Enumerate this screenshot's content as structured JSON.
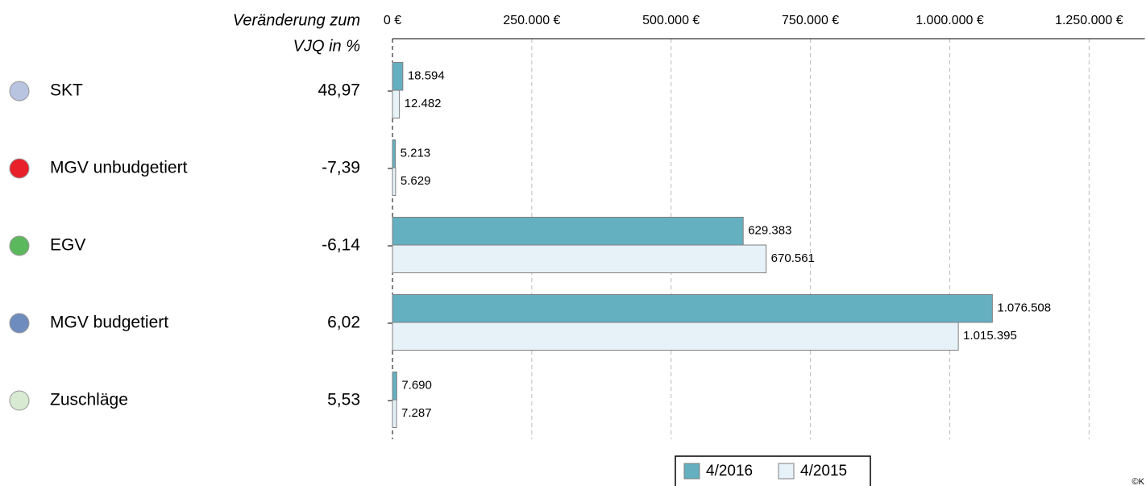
{
  "chart_data": {
    "type": "bar",
    "orientation": "horizontal",
    "change_header": [
      "Veränderung zum",
      "VJQ in %"
    ],
    "categories": [
      "SKT",
      "MGV unbudgetiert",
      "EGV",
      "MGV budgetiert",
      "Zuschläge"
    ],
    "category_colors": [
      "#b8c4e0",
      "#e8202a",
      "#5cb85c",
      "#6f8cbf",
      "#d9ead3"
    ],
    "change_values": [
      48.97,
      -7.39,
      -6.14,
      6.02,
      5.53
    ],
    "change_labels": [
      "48,97",
      "-7,39",
      "-6,14",
      "6,02",
      "5,53"
    ],
    "negative_color": "#e8202a",
    "series": [
      {
        "name": "4/2016",
        "color": "#64afc0",
        "values": [
          18594,
          5213,
          629383,
          1076508,
          7690
        ],
        "value_labels": [
          "18.594",
          "5.213",
          "629.383",
          "1.076.508",
          "7.690"
        ]
      },
      {
        "name": "4/2015",
        "color": "#e6f1f8",
        "values": [
          12482,
          5629,
          670561,
          1015395,
          7287
        ],
        "value_labels": [
          "12.482",
          "5.629",
          "670.561",
          "1.015.395",
          "7.287"
        ]
      }
    ],
    "xlim": [
      0,
      1350000
    ],
    "xticks": [
      {
        "value": 0,
        "label": "0 €"
      },
      {
        "value": 250000,
        "label": "250.000 €"
      },
      {
        "value": 500000,
        "label": "500.000 €"
      },
      {
        "value": 750000,
        "label": "750.000 €"
      },
      {
        "value": 1000000,
        "label": "1.000.000 €"
      },
      {
        "value": 1250000,
        "label": "1.250.000 €"
      }
    ],
    "grid": true,
    "legend": "bottom",
    "copyright": "©K"
  }
}
